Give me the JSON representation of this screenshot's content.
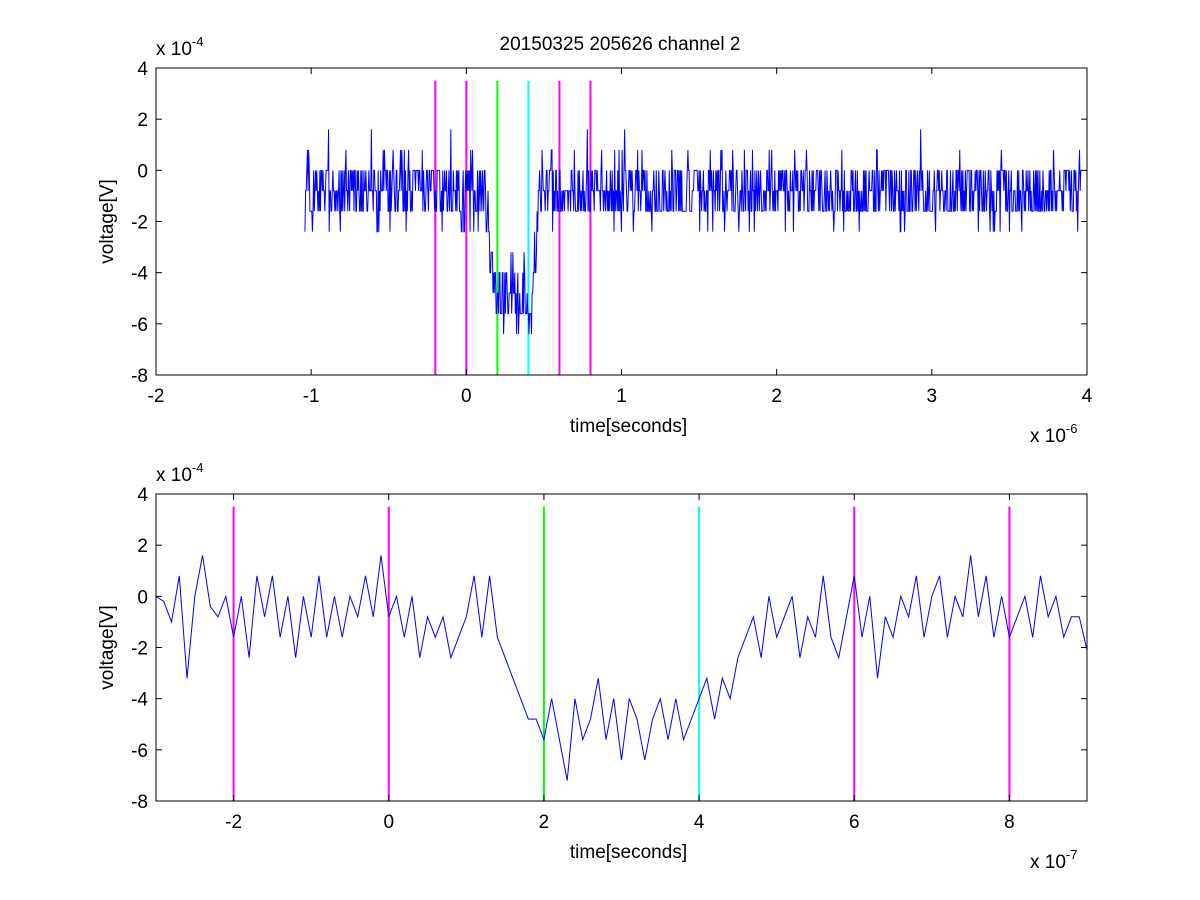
{
  "figure": {
    "title": "20150325 205626 channel 2"
  },
  "chart_data": [
    {
      "type": "line",
      "xlabel": "time[seconds]",
      "ylabel": "voltage[V]",
      "x_exponent_label": "x 10",
      "x_exponent": "-6",
      "y_exponent_label": "x 10",
      "y_exponent": "-4",
      "xlim": [
        -2,
        4
      ],
      "ylim": [
        -8,
        4
      ],
      "xticks": [
        "-2",
        "-1",
        "0",
        "1",
        "2",
        "3",
        "4"
      ],
      "yticks": [
        "-8",
        "-6",
        "-4",
        "-2",
        "0",
        "2",
        "4"
      ],
      "grid": false,
      "series": [
        {
          "color": "#0000ff",
          "x_start": -1.04,
          "x_end": 3.96,
          "baseline": -0.8,
          "noise_amplitude": 1.3,
          "dip_start": 0.16,
          "dip_end": 0.44,
          "dip_level": -4.8
        }
      ],
      "markers": [
        {
          "x": -0.2,
          "color": "#ff00ff"
        },
        {
          "x": 0.0,
          "color": "#ff00ff"
        },
        {
          "x": 0.2,
          "color": "#00ff00"
        },
        {
          "x": 0.4,
          "color": "#00ffff"
        },
        {
          "x": 0.6,
          "color": "#ff00ff"
        },
        {
          "x": 0.8,
          "color": "#ff00ff"
        }
      ],
      "marker_top": 3.5
    },
    {
      "type": "line",
      "xlabel": "time[seconds]",
      "ylabel": "voltage[V]",
      "x_exponent_label": "x 10",
      "x_exponent": "-7",
      "y_exponent_label": "x 10",
      "y_exponent": "-4",
      "xlim": [
        -3,
        9
      ],
      "ylim": [
        -8,
        4
      ],
      "xticks": [
        "-2",
        "0",
        "2",
        "4",
        "6",
        "8"
      ],
      "xtick_values": [
        -2,
        0,
        2,
        4,
        6,
        8
      ],
      "yticks": [
        "-8",
        "-6",
        "-4",
        "-2",
        "0",
        "2",
        "4"
      ],
      "grid": false,
      "series": [
        {
          "color": "#0000ff",
          "points": [
            [
              -3.0,
              0.0
            ],
            [
              -2.9,
              -0.2
            ],
            [
              -2.8,
              -1.0
            ],
            [
              -2.7,
              0.8
            ],
            [
              -2.6,
              -3.2
            ],
            [
              -2.5,
              0.0
            ],
            [
              -2.4,
              1.6
            ],
            [
              -2.3,
              -0.4
            ],
            [
              -2.2,
              -0.8
            ],
            [
              -2.1,
              0.0
            ],
            [
              -2.0,
              -1.6
            ],
            [
              -1.9,
              0.0
            ],
            [
              -1.8,
              -2.4
            ],
            [
              -1.7,
              0.8
            ],
            [
              -1.6,
              -0.8
            ],
            [
              -1.5,
              0.8
            ],
            [
              -1.4,
              -1.6
            ],
            [
              -1.3,
              0.0
            ],
            [
              -1.2,
              -2.4
            ],
            [
              -1.1,
              0.0
            ],
            [
              -1.0,
              -1.6
            ],
            [
              -0.9,
              0.8
            ],
            [
              -0.8,
              -1.6
            ],
            [
              -0.7,
              0.0
            ],
            [
              -0.6,
              -1.6
            ],
            [
              -0.5,
              0.0
            ],
            [
              -0.4,
              -0.8
            ],
            [
              -0.3,
              0.8
            ],
            [
              -0.2,
              -0.8
            ],
            [
              -0.1,
              1.6
            ],
            [
              0.0,
              -0.8
            ],
            [
              0.1,
              0.0
            ],
            [
              0.2,
              -1.6
            ],
            [
              0.3,
              0.0
            ],
            [
              0.4,
              -2.4
            ],
            [
              0.5,
              -0.8
            ],
            [
              0.6,
              -1.6
            ],
            [
              0.7,
              -0.8
            ],
            [
              0.8,
              -2.4
            ],
            [
              0.9,
              -1.6
            ],
            [
              1.0,
              -0.8
            ],
            [
              1.1,
              0.8
            ],
            [
              1.2,
              -1.6
            ],
            [
              1.3,
              0.8
            ],
            [
              1.4,
              -1.6
            ],
            [
              1.5,
              -2.4
            ],
            [
              1.6,
              -3.2
            ],
            [
              1.7,
              -4.0
            ],
            [
              1.8,
              -4.8
            ],
            [
              1.9,
              -4.8
            ],
            [
              2.0,
              -5.6
            ],
            [
              2.1,
              -4.0
            ],
            [
              2.2,
              -5.6
            ],
            [
              2.3,
              -7.2
            ],
            [
              2.4,
              -4.0
            ],
            [
              2.5,
              -5.6
            ],
            [
              2.6,
              -4.8
            ],
            [
              2.7,
              -3.2
            ],
            [
              2.8,
              -5.6
            ],
            [
              2.9,
              -4.0
            ],
            [
              3.0,
              -6.4
            ],
            [
              3.1,
              -4.0
            ],
            [
              3.2,
              -4.8
            ],
            [
              3.3,
              -6.4
            ],
            [
              3.4,
              -4.8
            ],
            [
              3.5,
              -4.0
            ],
            [
              3.6,
              -5.6
            ],
            [
              3.7,
              -4.0
            ],
            [
              3.8,
              -5.6
            ],
            [
              3.9,
              -4.8
            ],
            [
              4.0,
              -4.0
            ],
            [
              4.1,
              -3.2
            ],
            [
              4.2,
              -4.8
            ],
            [
              4.3,
              -3.2
            ],
            [
              4.4,
              -4.0
            ],
            [
              4.5,
              -2.4
            ],
            [
              4.6,
              -1.6
            ],
            [
              4.7,
              -0.8
            ],
            [
              4.8,
              -2.4
            ],
            [
              4.9,
              0.0
            ],
            [
              5.0,
              -1.6
            ],
            [
              5.1,
              -0.8
            ],
            [
              5.2,
              0.0
            ],
            [
              5.3,
              -2.4
            ],
            [
              5.4,
              -0.8
            ],
            [
              5.5,
              -1.6
            ],
            [
              5.6,
              0.8
            ],
            [
              5.7,
              -1.6
            ],
            [
              5.8,
              -2.4
            ],
            [
              5.9,
              -0.8
            ],
            [
              6.0,
              0.8
            ],
            [
              6.1,
              -1.6
            ],
            [
              6.2,
              0.0
            ],
            [
              6.3,
              -3.2
            ],
            [
              6.4,
              -0.8
            ],
            [
              6.5,
              -1.6
            ],
            [
              6.6,
              0.0
            ],
            [
              6.7,
              -0.8
            ],
            [
              6.8,
              0.8
            ],
            [
              6.9,
              -1.6
            ],
            [
              7.0,
              0.0
            ],
            [
              7.1,
              0.8
            ],
            [
              7.2,
              -1.6
            ],
            [
              7.3,
              0.0
            ],
            [
              7.4,
              -0.8
            ],
            [
              7.5,
              1.6
            ],
            [
              7.6,
              -0.8
            ],
            [
              7.7,
              0.8
            ],
            [
              7.8,
              -1.6
            ],
            [
              7.9,
              0.0
            ],
            [
              8.0,
              -1.6
            ],
            [
              8.1,
              -0.8
            ],
            [
              8.2,
              0.0
            ],
            [
              8.3,
              -1.6
            ],
            [
              8.4,
              0.8
            ],
            [
              8.5,
              -0.8
            ],
            [
              8.6,
              0.0
            ],
            [
              8.7,
              -1.6
            ],
            [
              8.8,
              -0.8
            ],
            [
              8.9,
              -0.8
            ],
            [
              9.0,
              -2.1
            ]
          ]
        }
      ],
      "markers": [
        {
          "x": -2,
          "color": "#ff00ff"
        },
        {
          "x": 0,
          "color": "#ff00ff"
        },
        {
          "x": 2,
          "color": "#00ff00"
        },
        {
          "x": 4,
          "color": "#00ffff"
        },
        {
          "x": 6,
          "color": "#ff00ff"
        },
        {
          "x": 8,
          "color": "#ff00ff"
        }
      ],
      "marker_top": 3.5
    }
  ]
}
